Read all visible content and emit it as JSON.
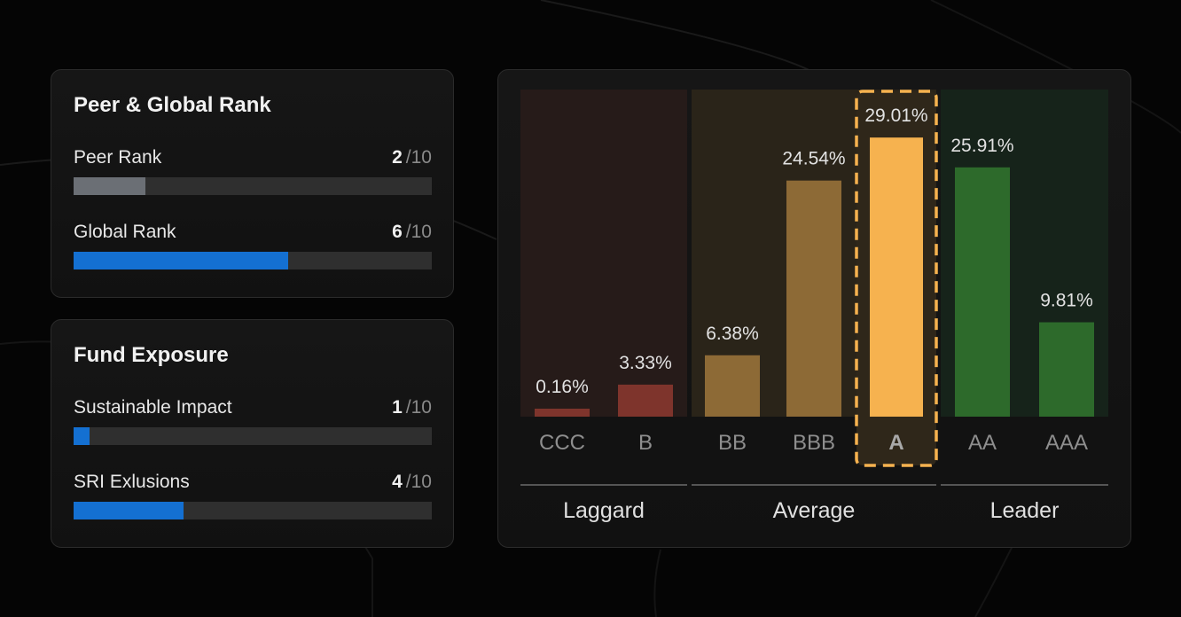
{
  "colors": {
    "peer_fill": "#6b6f75",
    "blue_fill": "#1470d2",
    "laggard": "#7e342c",
    "average": "#8d6a36",
    "highlight": "#f6b24f",
    "leader": "#2d6a2b"
  },
  "rank_card": {
    "title": "Peer & Global Rank",
    "metrics": [
      {
        "label": "Peer Rank",
        "score": "2",
        "denominator": "/10",
        "value": 2,
        "max": 10,
        "fill": "peer"
      },
      {
        "label": "Global Rank",
        "score": "6",
        "denominator": "/10",
        "value": 6,
        "max": 10,
        "fill": "blue"
      }
    ]
  },
  "exposure_card": {
    "title": "Fund Exposure",
    "metrics": [
      {
        "label": "Sustainable Impact",
        "score": "1",
        "denominator": "/10",
        "value": 0.45,
        "max": 10,
        "fill": "blue"
      },
      {
        "label": "SRI Exlusions",
        "score": "4",
        "denominator": "/10",
        "value": 3.06,
        "max": 10,
        "fill": "blue"
      }
    ]
  },
  "chart_data": {
    "type": "bar",
    "categories": [
      "CCC",
      "B",
      "BB",
      "BBB",
      "A",
      "AA",
      "AAA"
    ],
    "values": [
      0.16,
      3.33,
      6.38,
      24.54,
      29.01,
      25.91,
      9.81
    ],
    "value_labels": [
      "0.16%",
      "3.33%",
      "6.38%",
      "24.54%",
      "29.01%",
      "25.91%",
      "9.81%"
    ],
    "highlighted": "A",
    "groups": [
      {
        "name": "Laggard",
        "categories": [
          "CCC",
          "B"
        ],
        "color": "#7e342c"
      },
      {
        "name": "Average",
        "categories": [
          "BB",
          "BBB",
          "A"
        ],
        "color": "#8d6a36"
      },
      {
        "name": "Leader",
        "categories": [
          "AA",
          "AAA"
        ],
        "color": "#2d6a2b"
      }
    ],
    "ylim": [
      0,
      34
    ],
    "grid": false,
    "title": "",
    "xlabel": "",
    "ylabel": ""
  }
}
